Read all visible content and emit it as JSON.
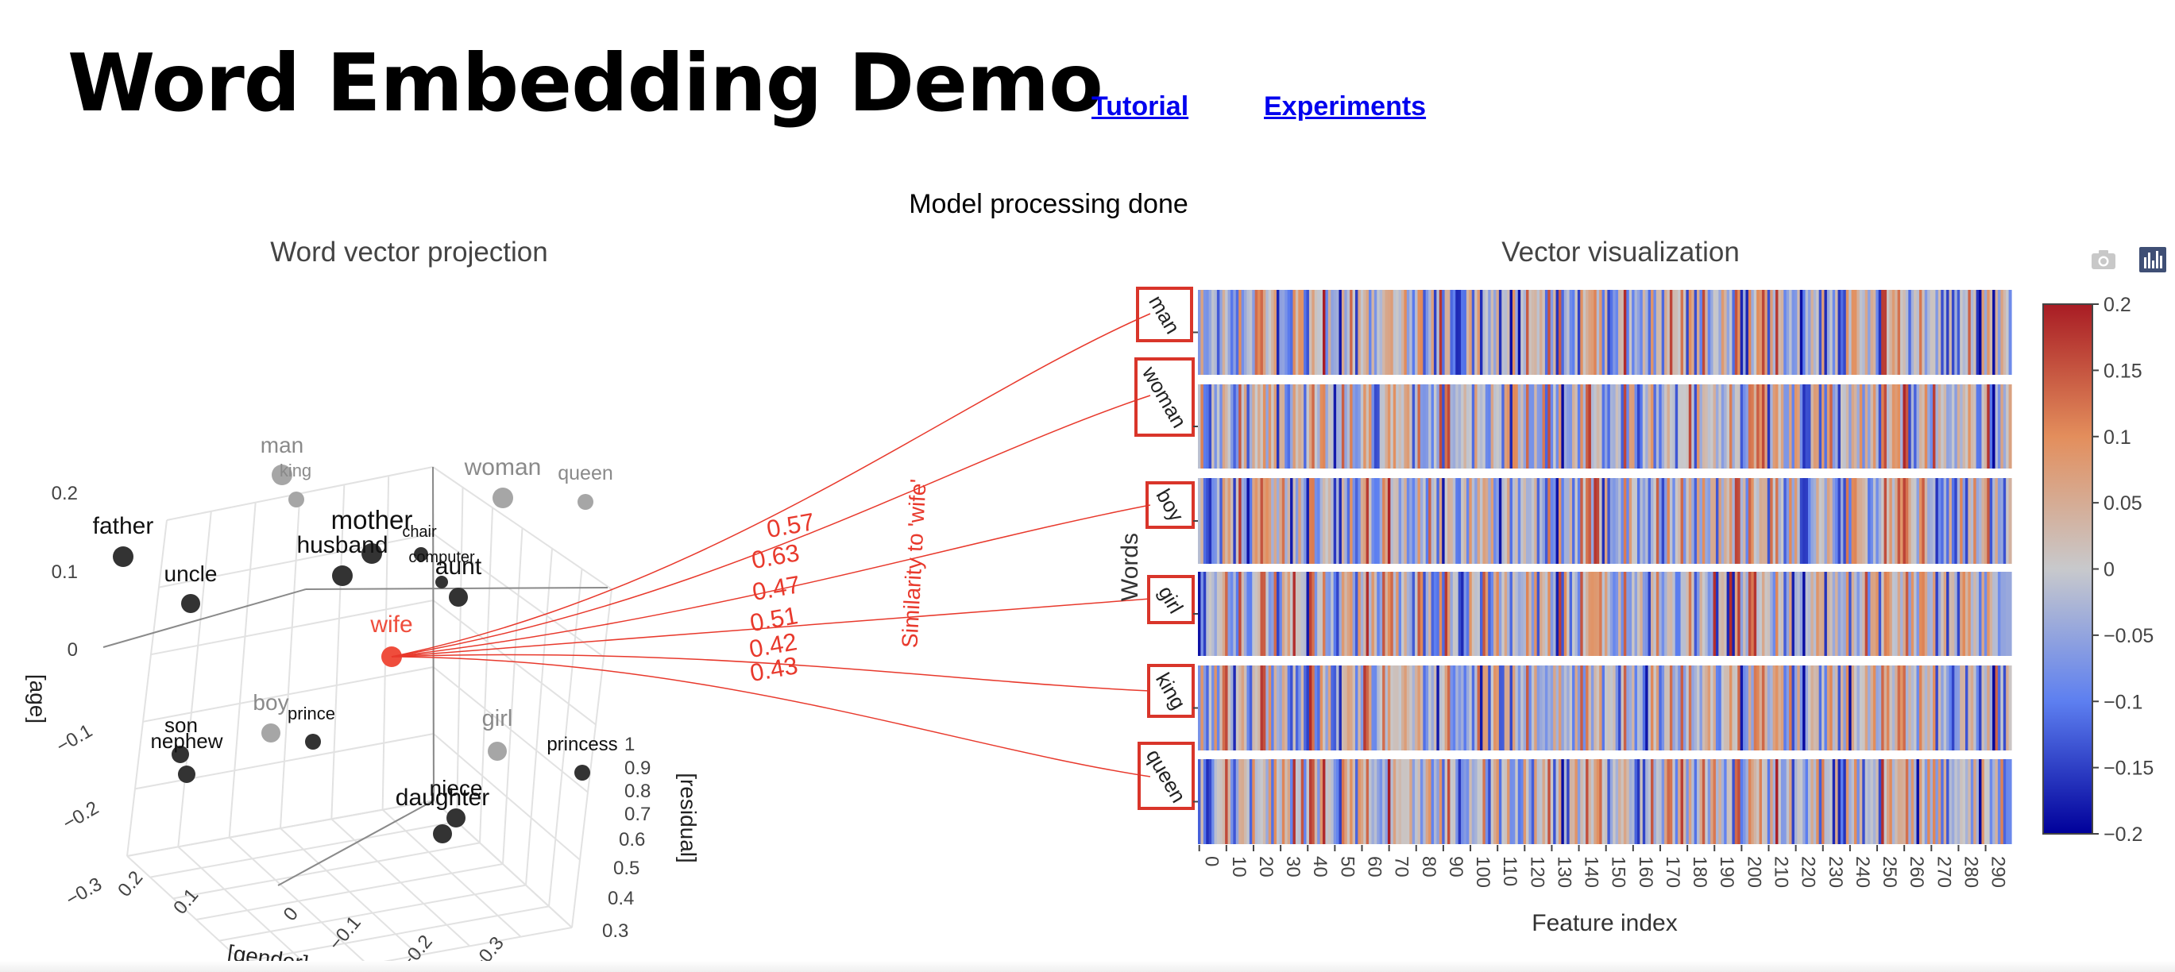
{
  "header": {
    "title": "Word Embedding Demo",
    "links": [
      {
        "label": "Tutorial"
      },
      {
        "label": "Experiments"
      }
    ]
  },
  "status": "Model processing done",
  "toolbar": {
    "icons": [
      "camera-icon",
      "bar-chart-icon"
    ]
  },
  "chart_data": [
    {
      "type": "scatter",
      "dimensions": 3,
      "title": "Word vector projection",
      "axes": {
        "x": {
          "label": "[gender]",
          "ticks": [
            0.2,
            0.1,
            0,
            -0.1,
            -0.2,
            -0.3
          ]
        },
        "y": {
          "label": "[age]",
          "ticks": [
            0.2,
            0.1,
            0,
            -0.1,
            -0.2,
            -0.3
          ]
        },
        "z": {
          "label": "[residual]",
          "ticks": [
            1,
            0.9,
            0.8,
            0.7,
            0.6,
            0.5,
            0.4,
            0.3
          ]
        }
      },
      "points": [
        {
          "word": "man",
          "group": "reference"
        },
        {
          "word": "king",
          "group": "reference"
        },
        {
          "word": "woman",
          "group": "reference"
        },
        {
          "word": "queen",
          "group": "reference"
        },
        {
          "word": "boy",
          "group": "reference"
        },
        {
          "word": "girl",
          "group": "reference"
        },
        {
          "word": "father",
          "group": "word"
        },
        {
          "word": "uncle",
          "group": "word"
        },
        {
          "word": "mother",
          "group": "word"
        },
        {
          "word": "husband",
          "group": "word"
        },
        {
          "word": "chair",
          "group": "word"
        },
        {
          "word": "computer",
          "group": "word"
        },
        {
          "word": "aunt",
          "group": "word"
        },
        {
          "word": "son",
          "group": "word"
        },
        {
          "word": "nephew",
          "group": "word"
        },
        {
          "word": "prince",
          "group": "word"
        },
        {
          "word": "princess",
          "group": "word"
        },
        {
          "word": "niece",
          "group": "word"
        },
        {
          "word": "daughter",
          "group": "word"
        },
        {
          "word": "wife",
          "group": "selected"
        }
      ],
      "colors": {
        "word": "#333333",
        "reference": "#a6a6a6",
        "selected": "#ef4d3c"
      }
    },
    {
      "type": "line",
      "title": "Similarity to 'wife'",
      "from": "wife",
      "series": [
        {
          "target": "man",
          "similarity": 0.57
        },
        {
          "target": "woman",
          "similarity": 0.63
        },
        {
          "target": "boy",
          "similarity": 0.47
        },
        {
          "target": "girl",
          "similarity": 0.51
        },
        {
          "target": "king",
          "similarity": 0.42
        },
        {
          "target": "queen",
          "similarity": 0.43
        }
      ],
      "color": "#e8392c"
    },
    {
      "type": "heatmap",
      "title": "Vector visualization",
      "xlabel": "Feature index",
      "ylabel": "Words",
      "rows": [
        "man",
        "woman",
        "boy",
        "girl",
        "king",
        "queen"
      ],
      "feature_count": 300,
      "xticks": [
        0,
        10,
        20,
        30,
        40,
        50,
        60,
        70,
        80,
        90,
        100,
        110,
        120,
        130,
        140,
        150,
        160,
        170,
        180,
        190,
        200,
        210,
        220,
        230,
        240,
        250,
        260,
        270,
        280,
        290
      ],
      "colorbar": {
        "range": [
          -0.2,
          0.2
        ],
        "ticks": [
          "0.2",
          "0.15",
          "0.1",
          "0.05",
          "0",
          "−0.05",
          "−0.1",
          "−0.15",
          "−0.2"
        ],
        "colorscale": [
          "#00009a",
          "#5d7ff0",
          "#c8c9cc",
          "#e38e5c",
          "#a81c24"
        ]
      }
    }
  ]
}
